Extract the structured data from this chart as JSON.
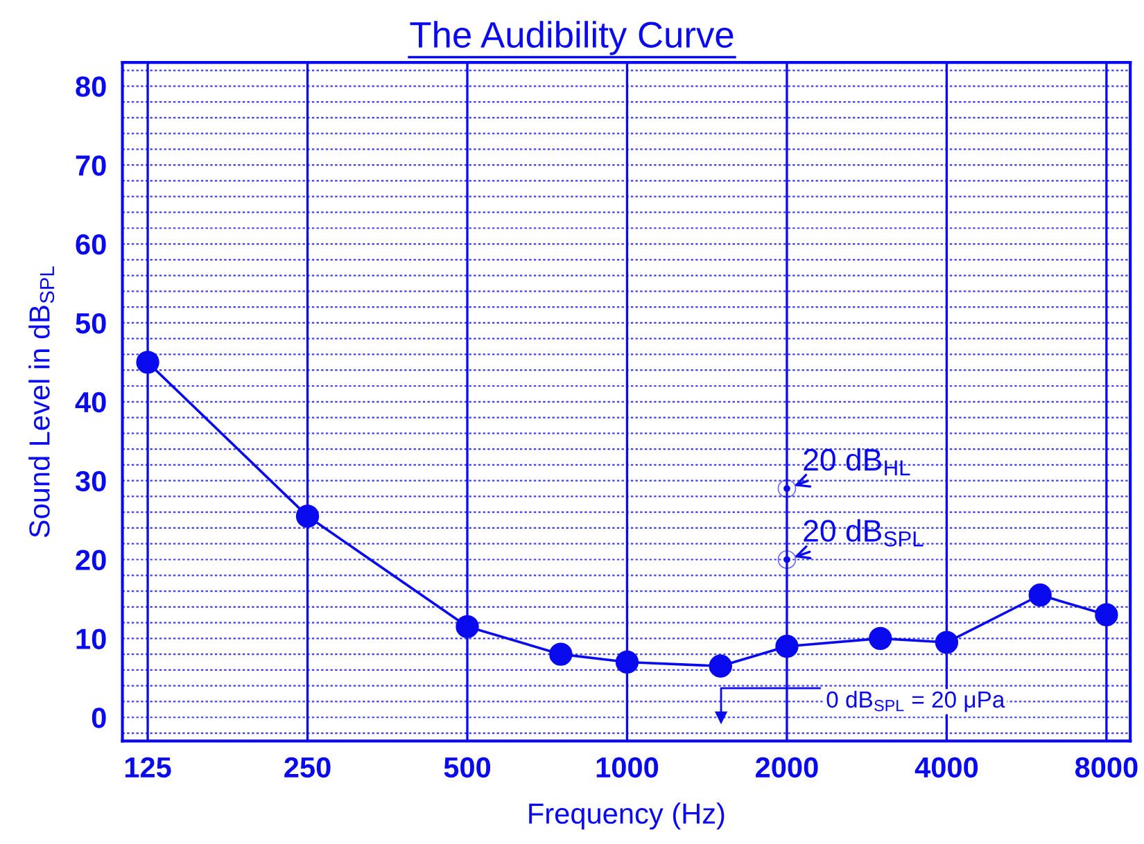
{
  "chart_data": {
    "type": "line",
    "title": "The Audibility Curve",
    "xlabel": "Frequency (Hz)",
    "ylabel": "Sound Level in dB$_{SPL}$",
    "x": [
      125,
      250,
      500,
      750,
      1000,
      1500,
      2000,
      3000,
      4000,
      6000,
      8000
    ],
    "series": [
      {
        "color": "#0a0aee",
        "values": [
          45,
          25.5,
          11.5,
          8,
          7,
          6.5,
          9,
          10,
          9.5,
          15.5,
          13
        ]
      }
    ],
    "log": "x",
    "xlim": [
      112,
      8870
    ],
    "xticks": [
      125,
      250,
      500,
      1000,
      2000,
      4000,
      8000
    ],
    "ylim": [
      -3,
      83
    ],
    "yticks": [
      0,
      10,
      20,
      30,
      40,
      50,
      60,
      70,
      80
    ],
    "grid": true,
    "marker": "circle",
    "line_style": "solid",
    "legend": false,
    "annotations": [
      {
        "text": "20 dB$_{HL}$",
        "x": 2000,
        "y": 29
      },
      {
        "text": "20 dB$_{SPL}$",
        "x": 2000,
        "y": 20
      },
      "0 dB$_{SPL}$ = 20 μPa"
    ]
  }
}
